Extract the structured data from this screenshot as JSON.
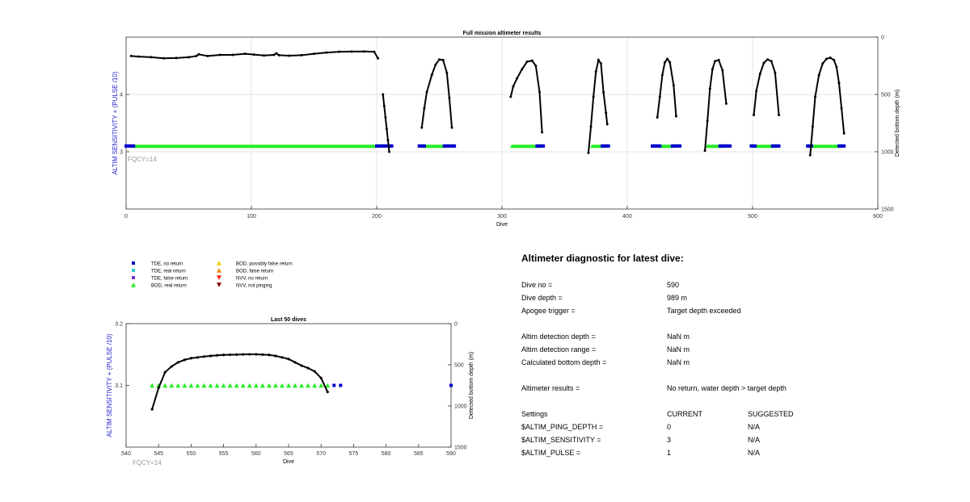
{
  "colors": {
    "tde_no_return": "#0000cc",
    "tde_real_return": "#33cccc",
    "tde_false_return": "#7a33cc",
    "bod_real_return": "#22ee22",
    "bod_possibly_false_return": "#eecc00",
    "bod_false_return": "#ee8800",
    "nvv_no_return": "#ee2200",
    "nvv_not_pinging": "#880000",
    "left_axis_label": "#2222cc",
    "fqcy_label": "#999999",
    "depth_line": "#000000"
  },
  "legend": {
    "items": [
      {
        "label": "TDE, no return",
        "marker": "square",
        "color": "#0000cc"
      },
      {
        "label": "TDE, real return",
        "marker": "square",
        "color": "#33cccc"
      },
      {
        "label": "TDE, false return",
        "marker": "square",
        "color": "#7a33cc"
      },
      {
        "label": "BOD, real return",
        "marker": "triangle-up",
        "color": "#22ee22"
      },
      {
        "label": "BOD, possibly false return",
        "marker": "triangle-up",
        "color": "#eecc00"
      },
      {
        "label": "BOD, false return",
        "marker": "triangle-up",
        "color": "#ee8800"
      },
      {
        "label": "NVV, no return",
        "marker": "triangle-down",
        "color": "#ee2200"
      },
      {
        "label": "NVV, not pinging",
        "marker": "triangle-down",
        "color": "#880000"
      }
    ]
  },
  "chart_data": [
    {
      "type": "scatter",
      "title": "Full mission altimeter results",
      "xlabel": "Dive",
      "ylabel_left": "ALTIM SENSITIVITY + (PULSE /10)",
      "ylabel_right": "Detected bottom depth (m)",
      "xlim": [
        0,
        600
      ],
      "ylim_left": [
        2,
        5
      ],
      "ylim_right": [
        1500,
        0
      ],
      "xticks": [
        0,
        100,
        200,
        300,
        400,
        500,
        600
      ],
      "yticks_left": [
        3,
        4
      ],
      "yticks_right": [
        0,
        500,
        1000,
        1500
      ],
      "grid": true,
      "annotation": "FQCY=14",
      "settings_series": [
        {
          "name": "BOD, real return",
          "marker": "triangle-up",
          "y": 3.1,
          "x_ranges": [
            [
              6,
              200
            ],
            [
              237,
              255
            ],
            [
              308,
              330
            ],
            [
              372,
              381
            ],
            [
              425,
              437
            ],
            [
              464,
              477
            ],
            [
              501,
              518
            ],
            [
              546,
              570
            ]
          ]
        },
        {
          "name": "TDE, no return",
          "marker": "square",
          "y": 3.1,
          "x_ranges": [
            [
              0,
              6
            ],
            [
              200,
              212
            ],
            [
              234,
              238
            ],
            [
              254,
              262
            ],
            [
              328,
              333
            ],
            [
              380,
              385
            ],
            [
              420,
              426
            ],
            [
              436,
              442
            ],
            [
              474,
              482
            ],
            [
              499,
              502
            ],
            [
              516,
              521
            ],
            [
              544,
              547
            ],
            [
              569,
              573
            ]
          ]
        }
      ],
      "depth_segments": [
        {
          "x": [
            4,
            10,
            20,
            30,
            40,
            50,
            56,
            58,
            65,
            75,
            85,
            95,
            102,
            110,
            118,
            120,
            122,
            130,
            140,
            150,
            160,
            170,
            180,
            190,
            198,
            201
          ],
          "y": [
            165,
            170,
            175,
            185,
            182,
            175,
            165,
            150,
            165,
            155,
            155,
            145,
            152,
            160,
            155,
            142,
            158,
            162,
            158,
            145,
            135,
            128,
            126,
            125,
            128,
            185
          ]
        },
        {
          "x": [
            205,
            206,
            207,
            208,
            209,
            210
          ],
          "y": [
            500,
            600,
            700,
            800,
            900,
            1000
          ]
        },
        {
          "x": [
            236,
            238,
            240,
            244,
            247,
            250,
            253,
            256,
            258,
            260
          ],
          "y": [
            790,
            620,
            480,
            330,
            240,
            195,
            200,
            310,
            530,
            790
          ]
        },
        {
          "x": [
            307,
            309,
            312,
            316,
            320,
            324,
            327,
            330,
            332
          ],
          "y": [
            520,
            430,
            360,
            280,
            215,
            205,
            250,
            480,
            830
          ]
        },
        {
          "x": [
            369,
            371,
            373,
            375,
            377,
            379,
            381,
            383,
            384
          ],
          "y": [
            1010,
            780,
            520,
            300,
            200,
            230,
            480,
            660,
            760
          ]
        },
        {
          "x": [
            424,
            426,
            428,
            430,
            432,
            434,
            437,
            439
          ],
          "y": [
            700,
            520,
            330,
            220,
            190,
            220,
            420,
            690
          ]
        },
        {
          "x": [
            462,
            464,
            466,
            468,
            470,
            473,
            476,
            479
          ],
          "y": [
            990,
            730,
            450,
            280,
            210,
            200,
            290,
            580
          ]
        },
        {
          "x": [
            501,
            503,
            506,
            509,
            512,
            515,
            518,
            521
          ],
          "y": [
            680,
            470,
            320,
            225,
            195,
            210,
            310,
            680
          ]
        },
        {
          "x": [
            546,
            548,
            550,
            553,
            556,
            559,
            562,
            565,
            567,
            569,
            571,
            573
          ],
          "y": [
            1030,
            780,
            520,
            330,
            230,
            190,
            180,
            200,
            260,
            400,
            620,
            840
          ]
        }
      ]
    },
    {
      "type": "scatter",
      "title": "Last 50 dives",
      "xlabel": "Dive",
      "ylabel_left": "ALTIM SENSITIVITY + (PULSE /10)",
      "ylabel_right": "Detected bottom depth (m)",
      "xlim": [
        540,
        590
      ],
      "ylim_left": [
        3,
        3.2
      ],
      "ylim_right": [
        1500,
        0
      ],
      "xticks": [
        540,
        545,
        550,
        555,
        560,
        565,
        570,
        575,
        580,
        585,
        590
      ],
      "yticks_left": [
        3.1,
        3.2
      ],
      "yticks_right": [
        0,
        500,
        1000,
        1500
      ],
      "annotation": "FQCY=14",
      "bod_real_return": {
        "x": [
          544,
          545,
          546,
          547,
          548,
          549,
          550,
          551,
          552,
          553,
          554,
          555,
          556,
          557,
          558,
          559,
          560,
          561,
          562,
          563,
          564,
          565,
          566,
          567,
          568,
          569,
          570,
          571
        ],
        "y": 3.1
      },
      "tde_no_return": {
        "x": [
          572,
          573,
          590
        ],
        "y": 3.1
      },
      "bottom_depth": {
        "x": [
          544,
          545,
          546,
          547,
          548,
          549,
          550,
          551,
          552,
          553,
          554,
          555,
          556,
          557,
          558,
          559,
          560,
          561,
          562,
          563,
          564,
          565,
          566,
          567,
          568,
          569,
          570,
          571
        ],
        "y": [
          1040,
          780,
          590,
          520,
          470,
          440,
          420,
          410,
          400,
          392,
          385,
          380,
          378,
          376,
          374,
          373,
          373,
          376,
          380,
          392,
          410,
          430,
          470,
          510,
          540,
          580,
          660,
          830
        ]
      }
    }
  ],
  "diagnostic": {
    "title": "Altimeter diagnostic for latest dive:",
    "dive_no_label": "Dive no =",
    "dive_no_value": "590",
    "dive_depth_label": "Dive depth =",
    "dive_depth_value": "989 m",
    "apogee_label": "Apogee trigger =",
    "apogee_value": "Target depth exceeded",
    "detection_depth_label": "Altim detection depth =",
    "detection_depth_value": "NaN m",
    "detection_range_label": "Altim detection range =",
    "detection_range_value": "NaN m",
    "bottom_depth_label": "Calculated bottom depth =",
    "bottom_depth_value": "NaN m",
    "results_label": "Altimeter results =",
    "results_value": "No return, water depth > target depth",
    "settings_header": "Settings",
    "current_header": "CURRENT",
    "suggested_header": "SUGGESTED",
    "ping_depth_label": "$ALTIM_PING_DEPTH =",
    "ping_depth_current": "0",
    "ping_depth_suggested": "N/A",
    "sensitivity_label": "$ALTIM_SENSITIVITY =",
    "sensitivity_current": "3",
    "sensitivity_suggested": "N/A",
    "pulse_label": "$ALTIM_PULSE =",
    "pulse_current": "1",
    "pulse_suggested": "N/A"
  }
}
